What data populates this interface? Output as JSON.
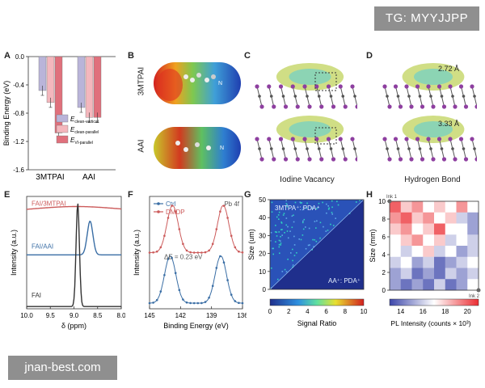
{
  "watermarks": {
    "top": "TG: MYYJJPP",
    "bottom": "jnan-best.com"
  },
  "panel_letters": [
    "A",
    "B",
    "C",
    "D",
    "E",
    "F",
    "G",
    "H"
  ],
  "panelB": {
    "labels": [
      "3MTPAI",
      "AAI"
    ],
    "atom_letter": "N"
  },
  "panelC": {
    "caption": "Iodine Vacancy"
  },
  "panelD": {
    "caption": "Hydrogen Bond",
    "distances": [
      "2.72 Å",
      "3.33 Å"
    ]
  },
  "colors": {
    "bar_vertical": "#b9b4d9",
    "bar_parallel": "#f4b7bd",
    "bar_vi": "#e0707c",
    "e_faipdpi": "#cc5b5b",
    "e_faiaai": "#3a6ea5",
    "e_fai": "#333333",
    "f_ctrl": "#3a6ea5",
    "f_dmdp": "#cc5b5b"
  },
  "chart_data": [
    {
      "panel": "A",
      "type": "bar",
      "categories": [
        "3MTPAI",
        "AAI"
      ],
      "ylabel": "Binding Energy (eV)",
      "ylim": [
        -1.6,
        0
      ],
      "yticks": [
        "0.0",
        "-0.4",
        "-0.8",
        "-1.2",
        "-1.6"
      ],
      "series": [
        {
          "name": "E_clean-vertical",
          "name_main": "E",
          "name_sub": "clean-vertical",
          "values": [
            -0.48,
            -0.72
          ]
        },
        {
          "name": "E_clean-parallel",
          "name_main": "E",
          "name_sub": "clean-parallel",
          "values": [
            -0.65,
            -0.86
          ]
        },
        {
          "name": "E_VI-parallel",
          "name_main": "E",
          "name_sub": "VI-parallel",
          "values": [
            -1.08,
            -0.86
          ]
        }
      ],
      "legend": "bottom-right"
    },
    {
      "panel": "E",
      "type": "line",
      "xlabel": "δ (ppm)",
      "ylabel": "Intensity (a.u.)",
      "xlim": [
        10.0,
        8.0
      ],
      "xticks": [
        "10.0",
        "9.5",
        "9.0",
        "8.5",
        "8.0"
      ],
      "series": [
        {
          "name": "FAI/3MTPAI",
          "peak_center": 8.95,
          "peak_height": 0.05,
          "peak_width": 0.9,
          "baseline": 0.86
        },
        {
          "name": "FAI/AAI",
          "peak_center": 8.66,
          "peak_height": 0.3,
          "peak_width": 0.06,
          "baseline": 0.48
        },
        {
          "name": "FAI",
          "peak_center": 8.92,
          "peak_height": 0.92,
          "peak_width": 0.035,
          "baseline": 0.02
        }
      ]
    },
    {
      "panel": "F",
      "type": "line",
      "xlabel": "Binding Energy (eV)",
      "ylabel": "Intensity (a.u.)",
      "xlim": [
        145,
        136
      ],
      "xticks": [
        "145",
        "142",
        "139",
        "136"
      ],
      "annotation_region": "Pb 4f",
      "annotation_delta": "ΔE = 0.23 eV",
      "series": [
        {
          "name": "Ctrl",
          "peaks": [
            143.0,
            138.1
          ],
          "peak_height": 0.42,
          "peak_width": 0.55,
          "baseline": 0.05
        },
        {
          "name": "DMDP",
          "peaks": [
            142.77,
            137.87
          ],
          "peak_height": 0.42,
          "peak_width": 0.55,
          "baseline": 0.5
        }
      ]
    },
    {
      "panel": "G",
      "type": "heatmap",
      "ylabel": "Size (um)",
      "ylim": [
        0,
        50
      ],
      "yticks": [
        "0",
        "10",
        "20",
        "30",
        "40",
        "50"
      ],
      "upper_label": "3MTPA⁺: PDA⁺",
      "lower_label": "AA⁺: PDA⁺",
      "colorbar": {
        "label": "Signal Ratio",
        "range": [
          0,
          10
        ],
        "ticks": [
          "0",
          "2",
          "4",
          "6",
          "8",
          "10"
        ]
      }
    },
    {
      "panel": "H",
      "type": "heatmap",
      "ylabel": "Size (mm)",
      "ylim": [
        0,
        10
      ],
      "yticks": [
        "0",
        "2",
        "4",
        "6",
        "8",
        "10"
      ],
      "markers": [
        "Ink 1",
        "Ink 2"
      ],
      "grid": [
        [
          20,
          18,
          19,
          17,
          18,
          17,
          19,
          17
        ],
        [
          19,
          20,
          18,
          19,
          17,
          18,
          16,
          15
        ],
        [
          18,
          19,
          17,
          18,
          20,
          17,
          17,
          15
        ],
        [
          17,
          18,
          19,
          17,
          18,
          16,
          17,
          16
        ],
        [
          17,
          16,
          17,
          18,
          16,
          17,
          15,
          16
        ],
        [
          16,
          17,
          15,
          16,
          14,
          15,
          16,
          17
        ],
        [
          15,
          16,
          14,
          15,
          14,
          16,
          15,
          16
        ],
        [
          15,
          14,
          15,
          14,
          16,
          14,
          15,
          17
        ]
      ],
      "colorbar": {
        "label": "PL Intensity (counts × 10³)",
        "range": [
          13,
          21
        ],
        "ticks": [
          "14",
          "16",
          "18",
          "20"
        ]
      }
    }
  ]
}
